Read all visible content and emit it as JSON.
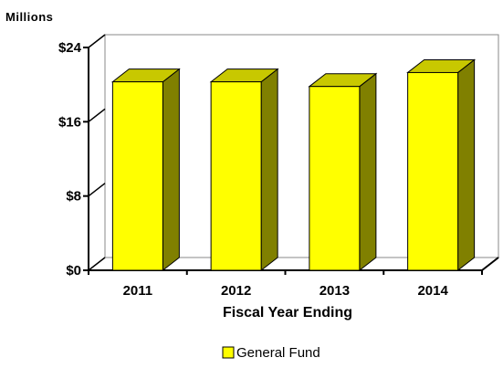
{
  "chart_data": {
    "type": "bar",
    "units_label": "Millions",
    "xlabel": "Fiscal Year Ending",
    "ylabel": "",
    "categories": [
      "2011",
      "2012",
      "2013",
      "2014"
    ],
    "series": [
      {
        "name": "General Fund",
        "values": [
          20.3,
          20.3,
          19.8,
          21.3
        ]
      }
    ],
    "ylim": [
      0,
      24
    ],
    "yticks": [
      0,
      8,
      16,
      24
    ],
    "ytick_labels": [
      "$0",
      "$8",
      "$16",
      "$24"
    ],
    "grid": false,
    "legend_position": "bottom-center",
    "colors": {
      "bar_front": "#ffff00",
      "bar_side": "#808000",
      "bar_top": "#c8c800",
      "outline": "#000000",
      "wall": "#ffffff"
    }
  }
}
